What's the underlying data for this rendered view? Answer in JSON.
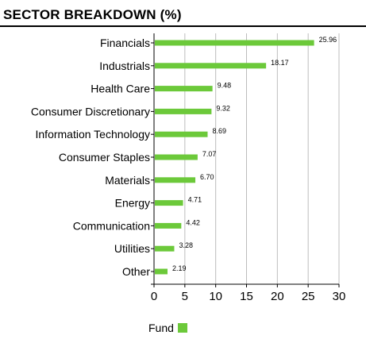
{
  "title": "SECTOR BREAKDOWN (%)",
  "colors": {
    "bar": "#6cc93a",
    "grid": "#bdbdbd",
    "axis": "#000000"
  },
  "chart_data": {
    "type": "bar",
    "orientation": "horizontal",
    "categories": [
      "Financials",
      "Industrials",
      "Health Care",
      "Consumer Discretionary",
      "Information Technology",
      "Consumer Staples",
      "Materials",
      "Energy",
      "Communication",
      "Utilities",
      "Other"
    ],
    "value_labels": [
      "25.96",
      "18.17",
      "9.48",
      "9.32",
      "8.69",
      "7.07",
      "6.70",
      "4.71",
      "4.42",
      "3.28",
      "2.19"
    ],
    "series": [
      {
        "name": "Fund",
        "values": [
          25.96,
          18.17,
          9.48,
          9.32,
          8.69,
          7.07,
          6.7,
          4.71,
          4.42,
          3.28,
          2.19
        ]
      }
    ],
    "xlim": [
      0,
      30
    ],
    "xticks": [
      "0",
      "5",
      "10",
      "15",
      "20",
      "25",
      "30"
    ],
    "grid": true,
    "legend": "bottom"
  }
}
